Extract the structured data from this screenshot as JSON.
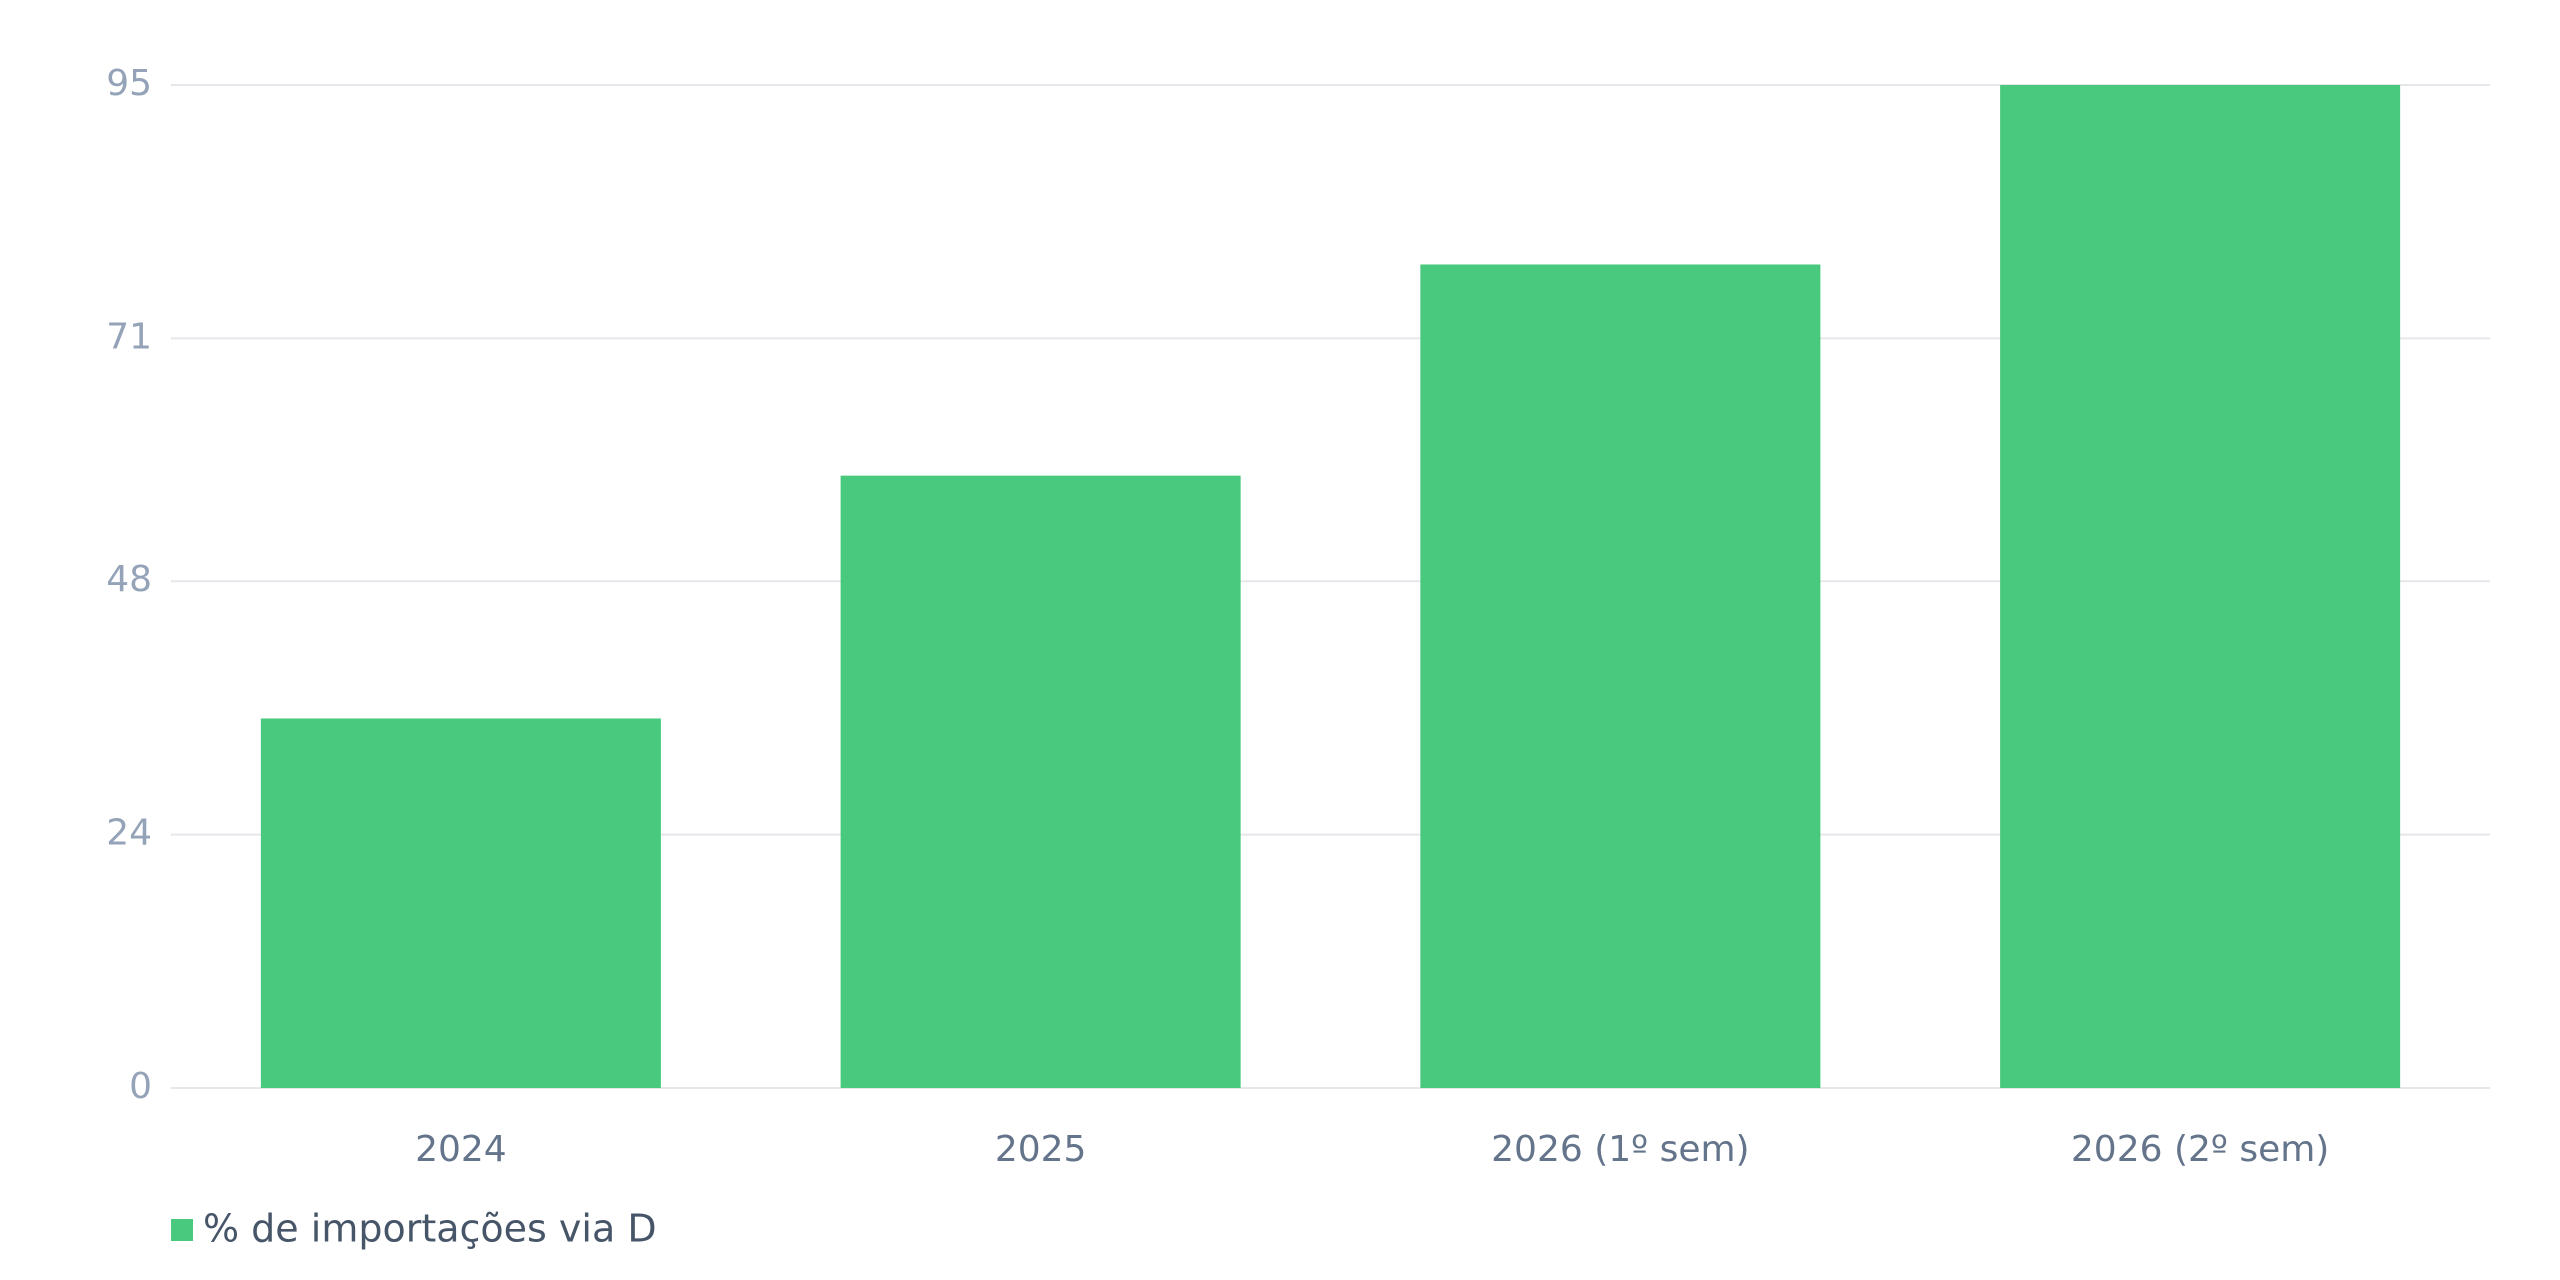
{
  "chart_data": {
    "type": "bar",
    "categories": [
      "2024",
      "2025",
      "2026 (1º sem)",
      "2026 (2º sem)"
    ],
    "series": [
      {
        "name": "% de importações via D",
        "color": "#48c97e",
        "values": [
          35,
          58,
          78,
          95
        ]
      }
    ],
    "ylim": [
      0,
      95
    ],
    "yticks": [
      0,
      24,
      48,
      71,
      95
    ],
    "grid": true,
    "legend": "bottom-left"
  }
}
